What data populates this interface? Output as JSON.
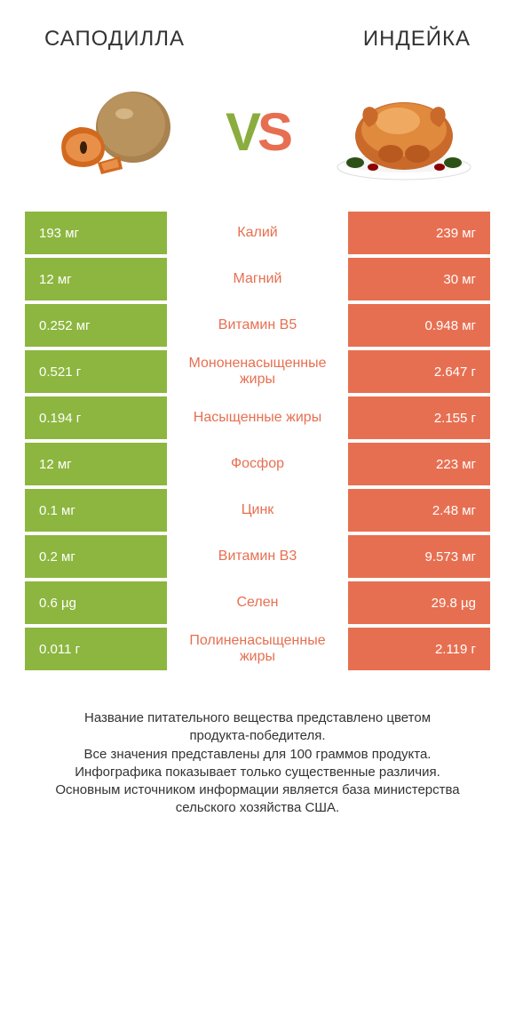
{
  "colors": {
    "green": "#8cb63f",
    "orange": "#e76f51",
    "green_text": "#8aad3f",
    "orange_text": "#e76f51"
  },
  "header": {
    "left": "САПОДИЛЛА",
    "right": "ИНДЕЙКА"
  },
  "vs": {
    "v": "V",
    "s": "S"
  },
  "rows": [
    {
      "left": "193 мг",
      "label": "Калий",
      "right": "239 мг",
      "winner": "right"
    },
    {
      "left": "12 мг",
      "label": "Магний",
      "right": "30 мг",
      "winner": "right"
    },
    {
      "left": "0.252 мг",
      "label": "Витамин B5",
      "right": "0.948 мг",
      "winner": "right"
    },
    {
      "left": "0.521 г",
      "label": "Мононенасыщенные жиры",
      "right": "2.647 г",
      "winner": "right"
    },
    {
      "left": "0.194 г",
      "label": "Насыщенные жиры",
      "right": "2.155 г",
      "winner": "right"
    },
    {
      "left": "12 мг",
      "label": "Фосфор",
      "right": "223 мг",
      "winner": "right"
    },
    {
      "left": "0.1 мг",
      "label": "Цинк",
      "right": "2.48 мг",
      "winner": "right"
    },
    {
      "left": "0.2 мг",
      "label": "Витамин B3",
      "right": "9.573 мг",
      "winner": "right"
    },
    {
      "left": "0.6 µg",
      "label": "Селен",
      "right": "29.8 µg",
      "winner": "right"
    },
    {
      "left": "0.011 г",
      "label": "Полиненасыщенные жиры",
      "right": "2.119 г",
      "winner": "right"
    }
  ],
  "footer": {
    "line1": "Название питательного вещества представлено цветом продукта‑победителя.",
    "line2": "Все значения представлены для 100 граммов продукта.",
    "line3": "Инфографика показывает только существенные различия.",
    "line4": "Основным источником информации является база министерства сельского хозяйства США."
  }
}
